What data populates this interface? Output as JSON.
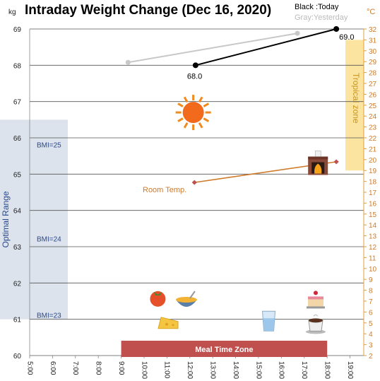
{
  "chart_data": {
    "type": "line",
    "title": "Intraday Weight Change (Dec 16, 2020)",
    "left_unit": "kg",
    "right_unit": "°C",
    "legend": {
      "today": "Black :Today",
      "yesterday": "Gray:Yesterday"
    },
    "x_ticks": [
      "5:00",
      "6:00",
      "7:00",
      "8:00",
      "9:00",
      "10:00",
      "11:00",
      "12:00",
      "13:00",
      "14:00",
      "15:00",
      "16:00",
      "17:00",
      "18:00",
      "19:00"
    ],
    "xlim": [
      5,
      19.6
    ],
    "ylim_left": [
      60,
      69
    ],
    "ylim_right": [
      2,
      32
    ],
    "series": [
      {
        "name": "Today",
        "axis": "left",
        "color": "#000000",
        "points": [
          {
            "x": 12.25,
            "y": 68.0
          },
          {
            "x": 18.4,
            "y": 69.0
          }
        ],
        "labels": [
          "68.0",
          "69.0"
        ]
      },
      {
        "name": "Yesterday",
        "axis": "left",
        "color": "#c8c8c8",
        "points": [
          {
            "x": 9.3,
            "y": 68.08
          },
          {
            "x": 16.7,
            "y": 68.88
          }
        ]
      },
      {
        "name": "Room Temp.",
        "axis": "right",
        "color": "#d07a2a",
        "points": [
          {
            "x": 12.2,
            "y": 17.9
          },
          {
            "x": 18.4,
            "y": 19.8
          }
        ]
      }
    ],
    "room_temp_label": "Room Temp.",
    "optimal_range": {
      "label": "Optimal Range",
      "from": 61,
      "to": 66.5
    },
    "bmi_marks": [
      {
        "label": "BMI=25",
        "y": 65.8
      },
      {
        "label": "BMI=24",
        "y": 63.2
      },
      {
        "label": "BMI=23",
        "y": 61.1
      }
    ],
    "tropical_zone": {
      "label": "Tropical zone",
      "from": 19,
      "to": 31
    },
    "meal_zone": {
      "label": "Meal Time Zone",
      "from": 9.0,
      "to": 18.0
    },
    "icons": [
      {
        "name": "sun-icon",
        "x": 12.15,
        "y": 66.7
      },
      {
        "name": "fireplace-icon",
        "x": 17.6,
        "y": 65.25
      },
      {
        "name": "tomato-icon",
        "x": 10.6,
        "y": 61.6
      },
      {
        "name": "soup-bowl-icon",
        "x": 11.85,
        "y": 61.5
      },
      {
        "name": "cheese-icon",
        "x": 11.05,
        "y": 60.9
      },
      {
        "name": "water-glass-icon",
        "x": 15.45,
        "y": 60.95
      },
      {
        "name": "cake-icon",
        "x": 17.5,
        "y": 61.55
      },
      {
        "name": "coffee-cup-icon",
        "x": 17.5,
        "y": 60.85
      }
    ],
    "grid": true
  }
}
